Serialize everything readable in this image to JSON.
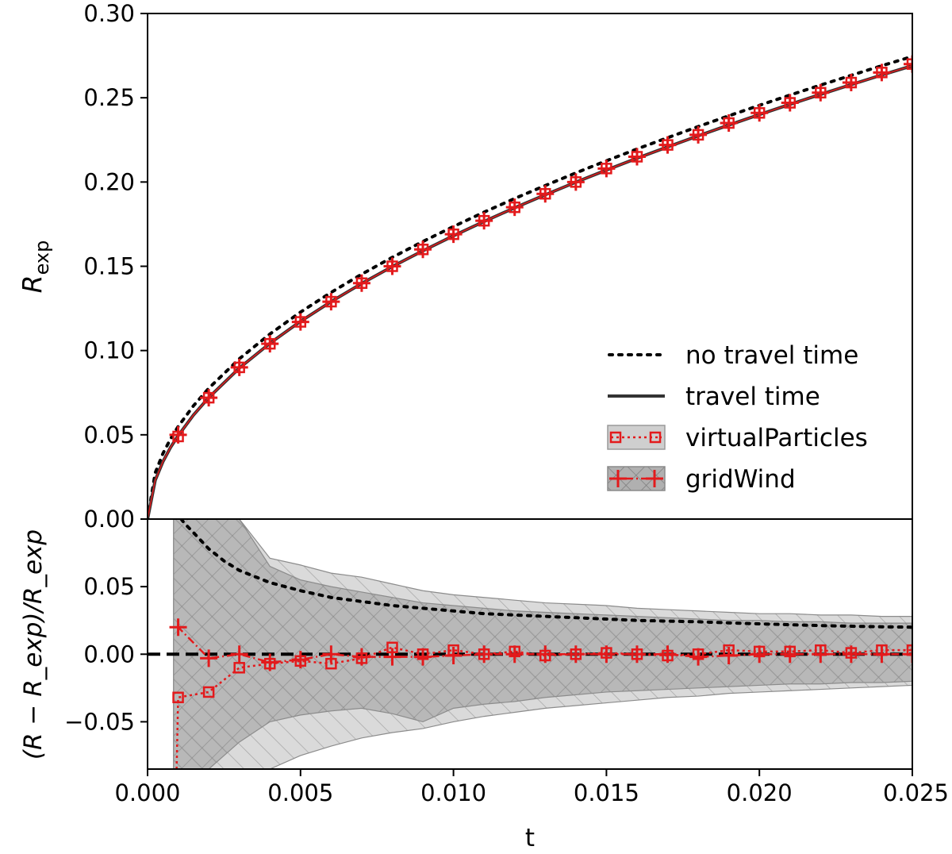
{
  "chart_data": [
    {
      "type": "line",
      "panel": "top",
      "xlabel": "",
      "ylabel_main": "R",
      "ylabel_sub": "exp",
      "xlim": [
        0,
        0.025
      ],
      "ylim": [
        0,
        0.3
      ],
      "yticks": [
        "0.00",
        "0.05",
        "0.10",
        "0.15",
        "0.20",
        "0.25",
        "0.30"
      ],
      "ytick_values": [
        0.0,
        0.05,
        0.1,
        0.15,
        0.2,
        0.25,
        0.3
      ],
      "x": [
        0.0,
        0.00025,
        0.0005,
        0.00075,
        0.001,
        0.0015,
        0.002,
        0.003,
        0.004,
        0.005,
        0.006,
        0.007,
        0.008,
        0.009,
        0.01,
        0.011,
        0.012,
        0.013,
        0.014,
        0.015,
        0.016,
        0.017,
        0.018,
        0.019,
        0.02,
        0.021,
        0.022,
        0.023,
        0.024,
        0.025
      ],
      "series": [
        {
          "name": "no travel time",
          "style": "dotted",
          "color": "#000000",
          "values": [
            0.0,
            0.0274,
            0.0388,
            0.0475,
            0.0549,
            0.0672,
            0.0776,
            0.0951,
            0.1098,
            0.1228,
            0.1345,
            0.1453,
            0.1553,
            0.1647,
            0.1736,
            0.1821,
            0.1902,
            0.1979,
            0.2054,
            0.2126,
            0.2196,
            0.2263,
            0.2329,
            0.2393,
            0.2455,
            0.2516,
            0.2575,
            0.2633,
            0.269,
            0.2745
          ]
        },
        {
          "name": "travel time",
          "style": "solid",
          "color": "#333333",
          "values": [
            0.0,
            0.023,
            0.034,
            0.0425,
            0.0495,
            0.0617,
            0.0721,
            0.0896,
            0.1043,
            0.1173,
            0.129,
            0.1398,
            0.1498,
            0.1592,
            0.1681,
            0.1766,
            0.1847,
            0.1924,
            0.1999,
            0.2071,
            0.2141,
            0.2208,
            0.2274,
            0.2338,
            0.24,
            0.2461,
            0.252,
            0.2578,
            0.2635,
            0.269
          ]
        }
      ],
      "marker_series": [
        {
          "name": "virtualParticles",
          "marker": "square",
          "color": "#e31a1c",
          "x": [
            0.001,
            0.002,
            0.003,
            0.004,
            0.005,
            0.006,
            0.007,
            0.008,
            0.009,
            0.01,
            0.011,
            0.012,
            0.013,
            0.014,
            0.015,
            0.016,
            0.017,
            0.018,
            0.019,
            0.02,
            0.021,
            0.022,
            0.023,
            0.024,
            0.025
          ],
          "values": [
            0.049,
            0.072,
            0.09,
            0.104,
            0.117,
            0.129,
            0.14,
            0.15,
            0.16,
            0.169,
            0.177,
            0.185,
            0.193,
            0.2,
            0.208,
            0.215,
            0.222,
            0.228,
            0.235,
            0.241,
            0.247,
            0.253,
            0.259,
            0.265,
            0.27
          ]
        },
        {
          "name": "gridWind",
          "marker": "plus",
          "color": "#e31a1c",
          "x": [
            0.001,
            0.002,
            0.003,
            0.004,
            0.005,
            0.006,
            0.007,
            0.008,
            0.009,
            0.01,
            0.011,
            0.012,
            0.013,
            0.014,
            0.015,
            0.016,
            0.017,
            0.018,
            0.019,
            0.02,
            0.021,
            0.022,
            0.023,
            0.024,
            0.025
          ],
          "values": [
            0.05,
            0.072,
            0.09,
            0.104,
            0.117,
            0.129,
            0.14,
            0.15,
            0.16,
            0.169,
            0.177,
            0.185,
            0.193,
            0.2,
            0.208,
            0.215,
            0.222,
            0.228,
            0.235,
            0.241,
            0.247,
            0.253,
            0.259,
            0.265,
            0.27
          ]
        }
      ],
      "legend": {
        "placement": "lower-right",
        "entries": [
          "no travel time",
          "travel time",
          "virtualParticles",
          "gridWind"
        ]
      }
    },
    {
      "type": "line",
      "panel": "bottom",
      "xlabel": "t",
      "ylabel_text": "(R − R_exp)/R_exp",
      "xlim": [
        0,
        0.025
      ],
      "ylim": [
        -0.085,
        0.1
      ],
      "xticks": [
        "0.000",
        "0.005",
        "0.010",
        "0.015",
        "0.020",
        "0.025"
      ],
      "xtick_values": [
        0.0,
        0.005,
        0.01,
        0.015,
        0.02,
        0.025
      ],
      "yticks": [
        "−0.05",
        "0.00",
        "0.05"
      ],
      "ytick_values": [
        -0.05,
        0.0,
        0.05
      ],
      "reference_line": {
        "y": 0.0,
        "style": "dashed",
        "color": "#000000"
      },
      "series": [
        {
          "name": "no travel time",
          "style": "dotted",
          "color": "#000000",
          "x": [
            0.0011,
            0.0012,
            0.0015,
            0.002,
            0.0025,
            0.003,
            0.004,
            0.005,
            0.006,
            0.007,
            0.008,
            0.009,
            0.01,
            0.011,
            0.012,
            0.013,
            0.014,
            0.015,
            0.016,
            0.017,
            0.018,
            0.019,
            0.02,
            0.021,
            0.022,
            0.023,
            0.024,
            0.025
          ],
          "values": [
            0.1,
            0.097,
            0.09,
            0.078,
            0.069,
            0.062,
            0.053,
            0.047,
            0.042,
            0.039,
            0.036,
            0.034,
            0.032,
            0.03,
            0.029,
            0.028,
            0.027,
            0.026,
            0.025,
            0.0245,
            0.024,
            0.0232,
            0.0225,
            0.0218,
            0.0212,
            0.0207,
            0.0203,
            0.02
          ]
        }
      ],
      "marker_series": [
        {
          "name": "virtualParticles",
          "marker": "square",
          "color": "#e31a1c",
          "x": [
            0.00095,
            0.001,
            0.002,
            0.003,
            0.004,
            0.005,
            0.006,
            0.007,
            0.008,
            0.009,
            0.01,
            0.011,
            0.012,
            0.013,
            0.014,
            0.015,
            0.016,
            0.017,
            0.018,
            0.019,
            0.02,
            0.021,
            0.022,
            0.023,
            0.024,
            0.025
          ],
          "values": [
            -0.085,
            -0.032,
            -0.028,
            -0.01,
            -0.007,
            -0.005,
            -0.007,
            -0.003,
            0.005,
            0.0,
            0.003,
            0.0,
            0.002,
            -0.001,
            0.0,
            0.001,
            0.0,
            -0.001,
            0.0,
            0.003,
            0.002,
            0.002,
            0.003,
            0.001,
            0.003,
            0.003
          ]
        },
        {
          "name": "gridWind",
          "marker": "plus",
          "color": "#e31a1c",
          "x": [
            0.00095,
            0.001,
            0.002,
            0.003,
            0.004,
            0.005,
            0.006,
            0.007,
            0.008,
            0.009,
            0.01,
            0.011,
            0.012,
            0.013,
            0.014,
            0.015,
            0.016,
            0.017,
            0.018,
            0.019,
            0.02,
            0.021,
            0.022,
            0.023,
            0.024,
            0.025
          ],
          "values": [
            0.02,
            0.02,
            -0.003,
            0.0,
            -0.006,
            -0.004,
            0.0,
            -0.002,
            -0.002,
            -0.002,
            -0.001,
            0.0,
            0.0,
            0.0,
            0.0,
            0.0,
            0.0,
            0.0,
            -0.002,
            -0.001,
            0.0,
            0.0,
            0.0,
            0.0,
            0.0,
            0.0
          ]
        }
      ],
      "bands": [
        {
          "name": "virtualParticles band",
          "color": "#c8c8c8",
          "hatch": "none",
          "x": [
            0.00085,
            0.001,
            0.002,
            0.003,
            0.004,
            0.005,
            0.006,
            0.007,
            0.008,
            0.009,
            0.01,
            0.011,
            0.012,
            0.013,
            0.014,
            0.015,
            0.016,
            0.017,
            0.018,
            0.019,
            0.02,
            0.021,
            0.022,
            0.023,
            0.024,
            0.025
          ],
          "upper": [
            0.1,
            0.1,
            0.1,
            0.1,
            0.071,
            0.066,
            0.06,
            0.057,
            0.052,
            0.047,
            0.044,
            0.042,
            0.04,
            0.038,
            0.037,
            0.036,
            0.034,
            0.033,
            0.032,
            0.031,
            0.03,
            0.03,
            0.029,
            0.029,
            0.028,
            0.028
          ],
          "lower": [
            -0.085,
            -0.085,
            -0.085,
            -0.085,
            -0.085,
            -0.075,
            -0.068,
            -0.062,
            -0.058,
            -0.055,
            -0.05,
            -0.046,
            -0.043,
            -0.04,
            -0.038,
            -0.036,
            -0.034,
            -0.032,
            -0.031,
            -0.029,
            -0.028,
            -0.027,
            -0.026,
            -0.025,
            -0.024,
            -0.023
          ]
        },
        {
          "name": "gridWind band",
          "color": "#a8a8a8",
          "hatch": "crosshatch",
          "x": [
            0.00085,
            0.001,
            0.0015,
            0.002,
            0.003,
            0.004,
            0.005,
            0.006,
            0.007,
            0.008,
            0.009,
            0.01,
            0.011,
            0.012,
            0.013,
            0.014,
            0.015,
            0.016,
            0.017,
            0.018,
            0.019,
            0.02,
            0.021,
            0.022,
            0.023,
            0.024,
            0.025
          ],
          "upper": [
            0.1,
            0.1,
            0.1,
            0.1,
            0.1,
            0.065,
            0.055,
            0.05,
            0.046,
            0.042,
            0.038,
            0.036,
            0.034,
            0.032,
            0.031,
            0.03,
            0.029,
            0.028,
            0.027,
            0.026,
            0.025,
            0.025,
            0.024,
            0.024,
            0.023,
            0.023,
            0.023
          ],
          "lower": [
            -0.085,
            -0.085,
            -0.085,
            -0.085,
            -0.065,
            -0.05,
            -0.045,
            -0.042,
            -0.04,
            -0.044,
            -0.05,
            -0.04,
            -0.037,
            -0.035,
            -0.032,
            -0.03,
            -0.028,
            -0.027,
            -0.026,
            -0.025,
            -0.024,
            -0.023,
            -0.022,
            -0.022,
            -0.021,
            -0.021,
            -0.02
          ]
        }
      ]
    }
  ]
}
